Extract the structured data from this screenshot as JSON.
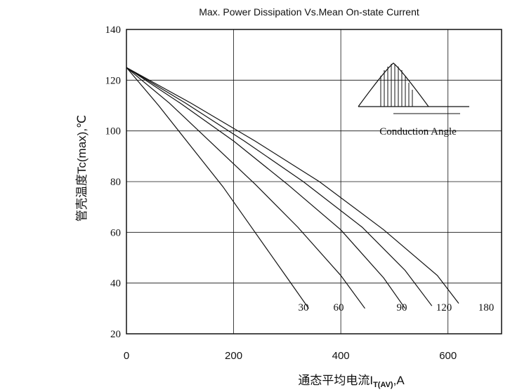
{
  "chart_data": {
    "type": "line",
    "title": "Max. Power Dissipation Vs.Mean On-state Current",
    "xlabel_main": "通态平均电流I",
    "xlabel_sub": "T(AV)",
    "xlabel_unit": ",A",
    "ylabel": "管壳温度Tc(max),℃",
    "xlim": [
      0,
      700
    ],
    "ylim": [
      20,
      140
    ],
    "x_ticks": [
      "0",
      "200",
      "400",
      "600"
    ],
    "y_ticks": [
      "20",
      "40",
      "60",
      "80",
      "100",
      "120",
      "140"
    ],
    "inset_label": "Conduction Angle",
    "series": [
      {
        "name": "30",
        "x": [
          0,
          60,
          120,
          180,
          240,
          300,
          340
        ],
        "y": [
          125,
          110,
          94,
          78,
          60,
          42,
          30
        ]
      },
      {
        "name": "60",
        "x": [
          0,
          80,
          160,
          240,
          320,
          400,
          445
        ],
        "y": [
          125,
          111,
          95,
          79,
          62,
          43,
          30
        ]
      },
      {
        "name": "90",
        "x": [
          0,
          100,
          200,
          300,
          400,
          480,
          520
        ],
        "y": [
          125,
          111,
          96,
          79,
          61,
          42,
          30
        ]
      },
      {
        "name": "120",
        "x": [
          0,
          110,
          220,
          330,
          440,
          520,
          570
        ],
        "y": [
          125,
          111,
          96,
          80,
          62,
          45,
          31
        ]
      },
      {
        "name": "180",
        "x": [
          0,
          120,
          240,
          360,
          480,
          580,
          620
        ],
        "y": [
          125,
          111,
          96,
          80,
          61,
          43,
          32
        ]
      }
    ]
  }
}
